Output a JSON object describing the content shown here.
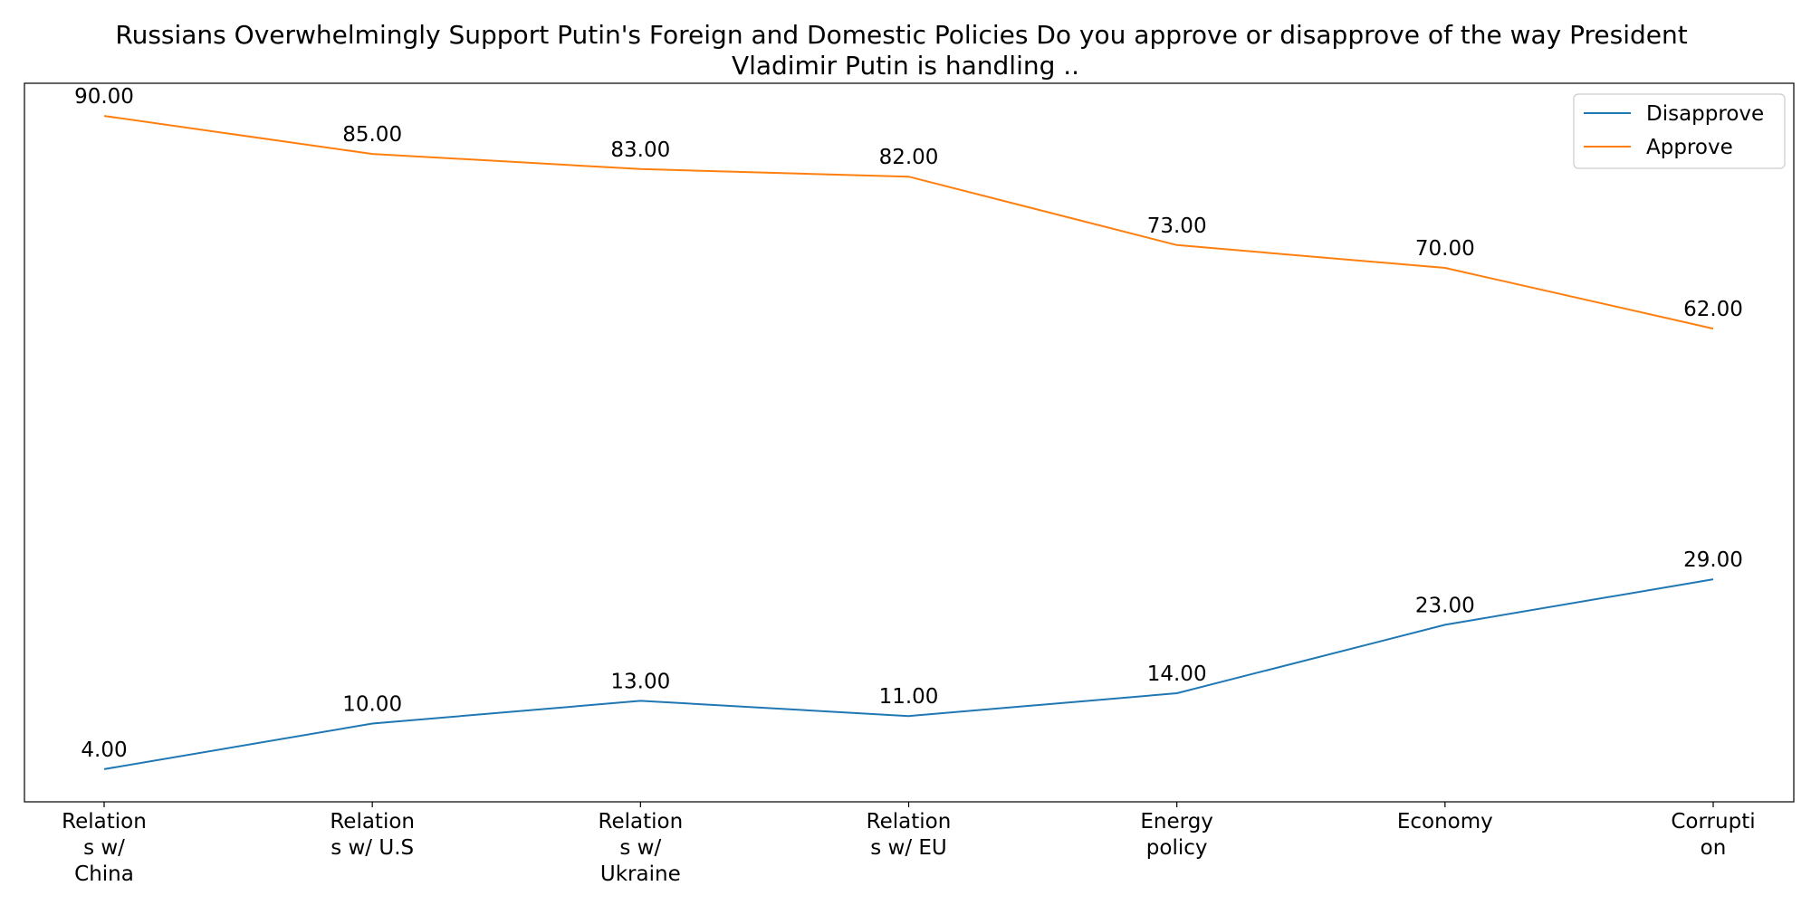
{
  "chart_data": {
    "type": "line",
    "title": "Russians Overwhelmingly Support Putin's Foreign and Domestic Policies Do you approve or disapprove of the way President Vladimir Putin is handling ..",
    "title_lines": [
      "Russians Overwhelmingly Support Putin's Foreign and Domestic Policies Do you approve or disapprove of the way President",
      "Vladimir Putin is handling .."
    ],
    "categories": [
      "Relations w/ China",
      "Relations w/ U.S",
      "Relations w/ Ukraine",
      "Relations w/ EU",
      "Energy policy",
      "Economy",
      "Corruption"
    ],
    "category_label_lines": [
      [
        "Relation",
        "s w/",
        "China"
      ],
      [
        "Relation",
        "s w/ U.S"
      ],
      [
        "Relation",
        "s w/",
        "Ukraine"
      ],
      [
        "Relation",
        "s w/ EU"
      ],
      [
        "Energy",
        "policy"
      ],
      [
        "Economy"
      ],
      [
        "Corrupti",
        "on"
      ]
    ],
    "series": [
      {
        "name": "Disapprove",
        "color": "#1f77b4",
        "values": [
          4,
          10,
          13,
          11,
          14,
          23,
          29
        ],
        "labels": [
          "4.00",
          "10.00",
          "13.00",
          "11.00",
          "14.00",
          "23.00",
          "29.00"
        ]
      },
      {
        "name": "Approve",
        "color": "#ff7f0e",
        "values": [
          90,
          85,
          83,
          82,
          73,
          70,
          62
        ],
        "labels": [
          "90.00",
          "85.00",
          "83.00",
          "82.00",
          "73.00",
          "70.00",
          "62.00"
        ]
      }
    ],
    "xlabel": "",
    "ylabel": "",
    "ylim": [
      -0.3,
      94.3
    ],
    "grid": false,
    "y_ticks_shown": false,
    "legend": "top-right"
  }
}
